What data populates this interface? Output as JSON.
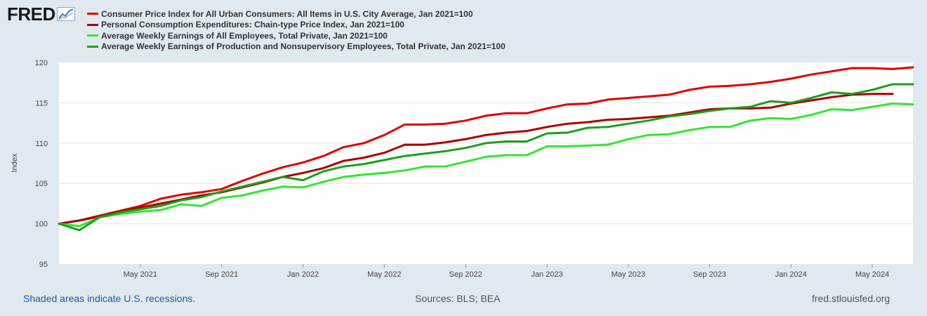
{
  "logo": {
    "text": "FRED"
  },
  "chart_data": {
    "type": "line",
    "ylabel": "Index",
    "ylim": [
      95,
      120
    ],
    "yticks": [
      95,
      100,
      105,
      110,
      115,
      120
    ],
    "xlim": [
      0,
      42
    ],
    "xticks": [
      {
        "label": "May 2021",
        "x": 4
      },
      {
        "label": "Sep 2021",
        "x": 8
      },
      {
        "label": "Jan 2022",
        "x": 12
      },
      {
        "label": "May 2022",
        "x": 16
      },
      {
        "label": "Sep 2022",
        "x": 20
      },
      {
        "label": "Jan 2023",
        "x": 24
      },
      {
        "label": "May 2023",
        "x": 28
      },
      {
        "label": "Sep 2023",
        "x": 32
      },
      {
        "label": "Jan 2024",
        "x": 36
      },
      {
        "label": "May 2024",
        "x": 40
      }
    ],
    "series": [
      {
        "name": "Consumer Price Index for All Urban Consumers: All Items in U.S. City Average, Jan 2021=100",
        "color": "#e00000",
        "values": [
          100.0,
          100.4,
          101.0,
          101.6,
          102.2,
          103.1,
          103.6,
          103.9,
          104.3,
          105.3,
          106.2,
          107.0,
          107.6,
          108.4,
          109.5,
          110.0,
          111.0,
          112.3,
          112.3,
          112.4,
          112.8,
          113.4,
          113.7,
          113.7,
          114.3,
          114.8,
          114.9,
          115.4,
          115.6,
          115.8,
          116.0,
          116.6,
          117.0,
          117.1,
          117.3,
          117.6,
          118.0,
          118.5,
          118.9,
          119.3,
          119.3,
          119.2,
          119.4
        ]
      },
      {
        "name": "Personal Consumption Expenditures: Chain-type Price Index, Jan 2021=100",
        "color": "#aa0000",
        "values": [
          100.0,
          100.4,
          100.9,
          101.5,
          102.0,
          102.5,
          103.0,
          103.5,
          103.9,
          104.5,
          105.1,
          105.8,
          106.3,
          106.9,
          107.8,
          108.2,
          108.8,
          109.8,
          109.8,
          110.1,
          110.5,
          111.0,
          111.3,
          111.5,
          112.0,
          112.4,
          112.6,
          112.9,
          113.0,
          113.2,
          113.4,
          113.8,
          114.2,
          114.3,
          114.3,
          114.4,
          114.9,
          115.3,
          115.7,
          116.0,
          116.1,
          116.1
        ]
      },
      {
        "name": "Average Weekly Earnings of All Employees, Total Private, Jan 2021=100",
        "color": "#32e632",
        "values": [
          100.0,
          99.7,
          100.8,
          101.2,
          101.5,
          101.7,
          102.4,
          102.2,
          103.2,
          103.5,
          104.1,
          104.6,
          104.5,
          105.2,
          105.8,
          106.1,
          106.3,
          106.6,
          107.1,
          107.1,
          107.7,
          108.3,
          108.5,
          108.5,
          109.6,
          109.6,
          109.7,
          109.8,
          110.5,
          111.0,
          111.1,
          111.6,
          112.0,
          112.0,
          112.8,
          113.1,
          113.0,
          113.5,
          114.2,
          114.1,
          114.5,
          114.9,
          114.8
        ]
      },
      {
        "name": "Average Weekly Earnings of Production and Nonsupervisory Employees, Total Private, Jan 2021=100",
        "color": "#1e9e1e",
        "values": [
          100.0,
          99.2,
          100.8,
          101.4,
          101.8,
          102.2,
          102.9,
          103.3,
          104.0,
          104.6,
          105.2,
          105.8,
          105.4,
          106.5,
          107.1,
          107.4,
          107.9,
          108.4,
          108.7,
          109.0,
          109.4,
          110.0,
          110.2,
          110.2,
          111.2,
          111.3,
          111.9,
          112.0,
          112.4,
          112.8,
          113.3,
          113.6,
          114.0,
          114.3,
          114.5,
          115.2,
          115.0,
          115.6,
          116.3,
          116.1,
          116.6,
          117.3,
          117.3
        ]
      }
    ]
  },
  "footer": {
    "recession_note": "Shaded areas indicate U.S. recessions.",
    "sources": "Sources: BLS; BEA",
    "site": "fred.stlouisfed.org"
  }
}
